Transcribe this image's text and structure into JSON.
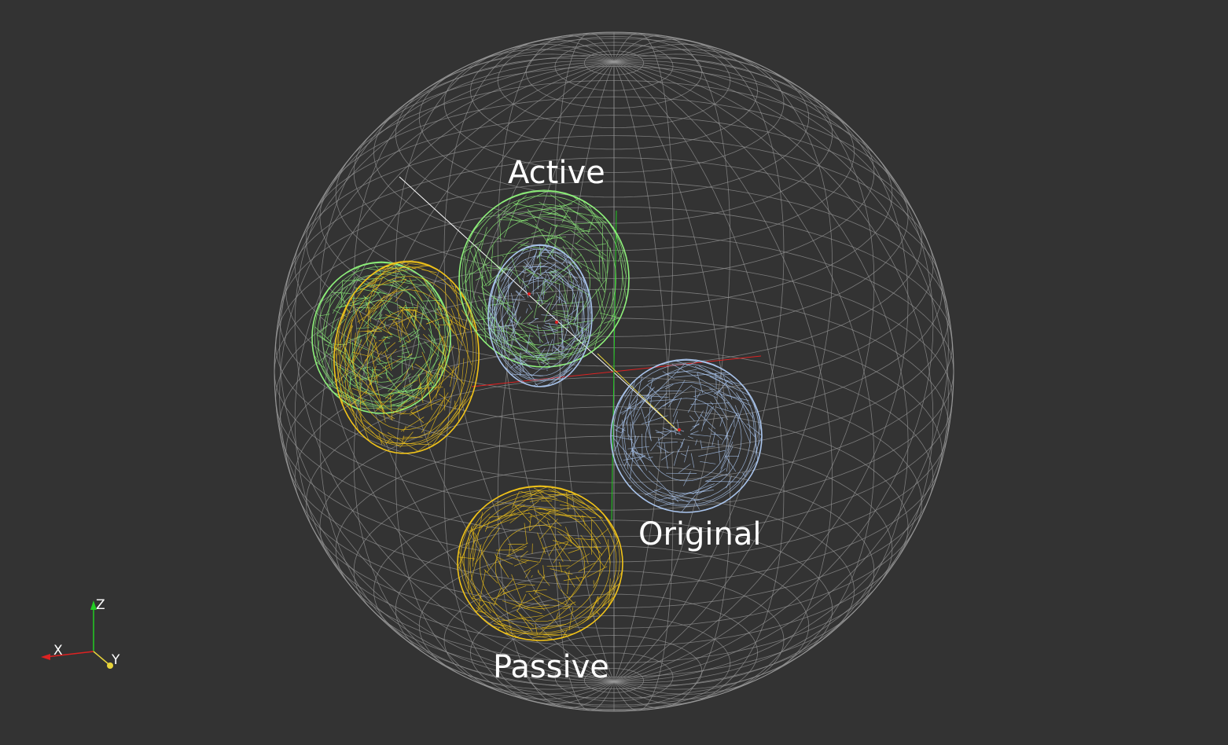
{
  "labels": {
    "active": "Active",
    "original": "Original",
    "passive": "Passive"
  },
  "orientation_axes": {
    "x": "X",
    "y": "Y",
    "z": "Z"
  },
  "colors": {
    "background": "#333333",
    "reference_sphere": "#9a9a9a",
    "active_mesh": "#8ef07a",
    "original_mesh": "#a9c4ec",
    "passive_mesh": "#f2c419",
    "axis_x": "#dd2222",
    "axis_y": "#e8d43a",
    "axis_z": "#22cc22"
  }
}
